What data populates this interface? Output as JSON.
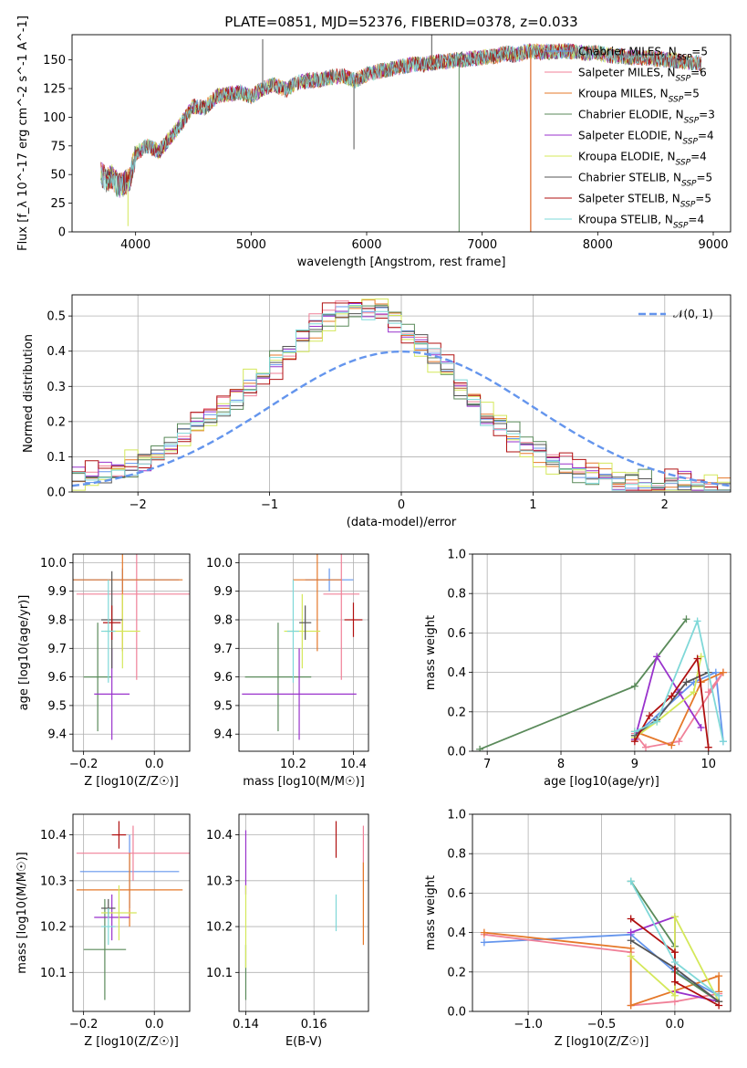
{
  "figure": {
    "title": "PLATE=0851, MJD=52376, FIBERID=0378, z=0.033"
  },
  "colors": {
    "grid": "#b0b0b0",
    "normal_curve": "#6495ed"
  },
  "legend_labels": [
    {
      "name": "Chabrier MILES",
      "n": "5",
      "color": "#6495ed"
    },
    {
      "name": "Salpeter MILES",
      "n": "6",
      "color": "#f08098"
    },
    {
      "name": "Kroupa MILES",
      "n": "5",
      "color": "#e5782a"
    },
    {
      "name": "Chabrier ELODIE",
      "n": "3",
      "color": "#5a8a5a"
    },
    {
      "name": "Salpeter ELODIE",
      "n": "4",
      "color": "#9932cc"
    },
    {
      "name": "Kroupa ELODIE",
      "n": "4",
      "color": "#d4e85a"
    },
    {
      "name": "Chabrier STELIB",
      "n": "5",
      "color": "#555555"
    },
    {
      "name": "Salpeter STELIB",
      "n": "5",
      "color": "#b01010"
    },
    {
      "name": "Kroupa STELIB",
      "n": "4",
      "color": "#7fd8d8"
    }
  ],
  "chart_data": [
    {
      "id": "spectrum",
      "type": "line",
      "xlabel": "wavelength [Angstrom, rest frame]",
      "ylabel": "Flux [f_λ 10^-17 erg cm^-2 s^-1 A^-1]",
      "xlim": [
        3450,
        9150
      ],
      "ylim": [
        0,
        172
      ],
      "xticks": [
        4000,
        5000,
        6000,
        7000,
        8000,
        9000
      ],
      "yticks": [
        0,
        25,
        50,
        75,
        100,
        125,
        150
      ],
      "grid": false,
      "legend_position": "upper-right",
      "continuum": {
        "x": [
          3700,
          3750,
          3800,
          3850,
          3900,
          3950,
          4000,
          4100,
          4200,
          4300,
          4400,
          4500,
          4600,
          4700,
          4800,
          4900,
          5000,
          5100,
          5200,
          5300,
          5400,
          5500,
          5600,
          5700,
          5800,
          5900,
          6000,
          6100,
          6200,
          6300,
          6400,
          6500,
          6600,
          6700,
          6800,
          6900,
          7000,
          7100,
          7200,
          7300,
          7400,
          7500,
          7600,
          7700,
          7800,
          7900,
          8000,
          8100,
          8200,
          8300,
          8400,
          8500,
          8600,
          8700,
          8800,
          8900
        ],
        "y": [
          50,
          45,
          48,
          40,
          42,
          45,
          68,
          75,
          70,
          82,
          95,
          110,
          108,
          118,
          120,
          122,
          118,
          125,
          128,
          124,
          130,
          132,
          133,
          135,
          136,
          132,
          137,
          140,
          142,
          144,
          146,
          146,
          148,
          149,
          150,
          151,
          152,
          153,
          156,
          154,
          158,
          157,
          157,
          158,
          157,
          156,
          156,
          154,
          153,
          152,
          152,
          151,
          150,
          149,
          148,
          147
        ]
      },
      "noise_amplitude": 7,
      "features": [
        {
          "x": 3934,
          "y": 5,
          "color": "#d4e85a"
        },
        {
          "x": 5890,
          "y": 72,
          "color": "#555555"
        },
        {
          "x": 5100,
          "y": 168,
          "color": "#555555"
        },
        {
          "x": 6563,
          "y": 172,
          "color": "#555555"
        },
        {
          "x": 6800,
          "y": 0,
          "color": "#5a8a5a"
        },
        {
          "x": 7420,
          "y": 0,
          "color": "#b01010"
        },
        {
          "x": 7420,
          "y": 0,
          "color": "#e5782a"
        }
      ]
    },
    {
      "id": "residuals",
      "type": "line",
      "xlabel": "(data-model)/error",
      "ylabel": "Normed distribution",
      "xlim": [
        -2.5,
        2.5
      ],
      "ylim": [
        0,
        0.56
      ],
      "xticks": [
        -2,
        -1,
        0,
        1,
        2
      ],
      "yticks": [
        0.0,
        0.1,
        0.2,
        0.3,
        0.4,
        0.5
      ],
      "grid": true,
      "legend_position": "upper-right",
      "legend_label": "𝒩(0, 1)",
      "bin_width": 0.1,
      "bin_start": -2.5,
      "base_histogram": [
        0.04,
        0.04,
        0.05,
        0.06,
        0.07,
        0.09,
        0.11,
        0.13,
        0.16,
        0.19,
        0.21,
        0.24,
        0.27,
        0.3,
        0.33,
        0.37,
        0.4,
        0.44,
        0.47,
        0.49,
        0.51,
        0.52,
        0.52,
        0.51,
        0.49,
        0.46,
        0.42,
        0.38,
        0.34,
        0.3,
        0.26,
        0.22,
        0.19,
        0.16,
        0.13,
        0.11,
        0.09,
        0.07,
        0.06,
        0.05,
        0.04,
        0.03,
        0.03,
        0.02,
        0.02,
        0.02,
        0.02,
        0.01,
        0.01,
        0.01
      ],
      "series_offsets": [
        0.0,
        0.02,
        -0.015,
        0.025,
        -0.02,
        0.03,
        -0.01,
        0.035,
        0.015
      ],
      "normal": {
        "mean": 0,
        "sigma": 1
      }
    },
    {
      "id": "age-vs-Z",
      "type": "scatter",
      "xlabel": "Z [log10(Z/Z☉)]",
      "ylabel": "age [log10(age/yr)]",
      "xlim": [
        -0.23,
        0.1
      ],
      "ylim": [
        9.34,
        10.03
      ],
      "xticks": [
        -0.2,
        0.0
      ],
      "yticks": [
        9.4,
        9.5,
        9.6,
        9.7,
        9.8,
        9.9,
        10.0
      ],
      "grid": true,
      "points": [
        {
          "series": 0,
          "x": -0.09,
          "y": 9.94,
          "xerr": 0.16,
          "yerr": 0.04
        },
        {
          "series": 1,
          "x": -0.05,
          "y": 9.89,
          "xerr": 0.17,
          "yerr": 0.3
        },
        {
          "series": 2,
          "x": -0.09,
          "y": 9.94,
          "xerr": 0.17,
          "yerr": 0.25
        },
        {
          "series": 3,
          "x": -0.16,
          "y": 9.6,
          "xerr": 0.04,
          "yerr": 0.19
        },
        {
          "series": 4,
          "x": -0.12,
          "y": 9.54,
          "xerr": 0.05,
          "yerr": 0.16
        },
        {
          "series": 5,
          "x": -0.09,
          "y": 9.76,
          "xerr": 0.05,
          "yerr": 0.13
        },
        {
          "series": 6,
          "x": -0.12,
          "y": 9.8,
          "xerr": 0.03,
          "yerr": 0.17
        },
        {
          "series": 7,
          "x": -0.12,
          "y": 9.79,
          "xerr": 0.025,
          "yerr": 0.06
        },
        {
          "series": 8,
          "x": -0.13,
          "y": 9.76,
          "xerr": 0.02,
          "yerr": 0.18
        }
      ]
    },
    {
      "id": "age-vs-mass",
      "type": "scatter",
      "xlabel": "mass [log10(M/M☉)]",
      "ylabel": "",
      "xlim": [
        10.02,
        10.45
      ],
      "ylim": [
        9.34,
        10.03
      ],
      "xticks": [
        10.2,
        10.4
      ],
      "yticks": [
        9.4,
        9.5,
        9.6,
        9.7,
        9.8,
        9.9,
        10.0
      ],
      "grid": true,
      "points": [
        {
          "series": 0,
          "x": 10.32,
          "y": 9.94,
          "xerr": 0.08,
          "yerr": 0.04
        },
        {
          "series": 1,
          "x": 10.36,
          "y": 9.89,
          "xerr": 0.06,
          "yerr": 0.3
        },
        {
          "series": 2,
          "x": 10.28,
          "y": 9.94,
          "xerr": 0.08,
          "yerr": 0.25
        },
        {
          "series": 3,
          "x": 10.15,
          "y": 9.6,
          "xerr": 0.11,
          "yerr": 0.19
        },
        {
          "series": 4,
          "x": 10.22,
          "y": 9.54,
          "xerr": 0.19,
          "yerr": 0.16
        },
        {
          "series": 5,
          "x": 10.23,
          "y": 9.76,
          "xerr": 0.06,
          "yerr": 0.13
        },
        {
          "series": 6,
          "x": 10.24,
          "y": 9.79,
          "xerr": 0.02,
          "yerr": 0.06
        },
        {
          "series": 7,
          "x": 10.4,
          "y": 9.8,
          "xerr": 0.03,
          "yerr": 0.06
        },
        {
          "series": 8,
          "x": 10.2,
          "y": 9.76,
          "xerr": 0.02,
          "yerr": 0.18
        }
      ]
    },
    {
      "id": "weight-vs-age",
      "type": "line",
      "xlabel": "age [log10(age/yr)]",
      "ylabel": "mass weight",
      "xlim": [
        6.8,
        10.3
      ],
      "ylim": [
        0,
        1
      ],
      "xticks": [
        7,
        8,
        9,
        10
      ],
      "yticks": [
        0.0,
        0.2,
        0.4,
        0.6,
        0.8,
        1.0
      ],
      "grid": true,
      "series": [
        {
          "series": 0,
          "x": [
            9.0,
            9.8,
            10.1,
            10.2
          ],
          "y": [
            0.08,
            0.35,
            0.4,
            0.05
          ]
        },
        {
          "series": 1,
          "x": [
            9.0,
            9.15,
            9.6,
            10.2,
            10.0
          ],
          "y": [
            0.09,
            0.02,
            0.05,
            0.4,
            0.3
          ]
        },
        {
          "series": 2,
          "x": [
            9.0,
            9.5,
            9.9,
            10.2
          ],
          "y": [
            0.1,
            0.03,
            0.35,
            0.4
          ]
        },
        {
          "series": 3,
          "x": [
            6.9,
            9.0,
            9.7
          ],
          "y": [
            0.01,
            0.33,
            0.67
          ]
        },
        {
          "series": 4,
          "x": [
            9.0,
            9.3,
            9.6,
            9.9
          ],
          "y": [
            0.06,
            0.48,
            0.3,
            0.12
          ]
        },
        {
          "series": 5,
          "x": [
            9.0,
            9.3,
            9.8,
            9.9
          ],
          "y": [
            0.07,
            0.15,
            0.3,
            0.48
          ]
        },
        {
          "series": 6,
          "x": [
            9.0,
            9.3,
            9.7,
            10.0
          ],
          "y": [
            0.08,
            0.16,
            0.35,
            0.4
          ]
        },
        {
          "series": 7,
          "x": [
            9.0,
            9.2,
            9.5,
            9.85,
            10.0
          ],
          "y": [
            0.05,
            0.18,
            0.28,
            0.47,
            0.02
          ]
        },
        {
          "series": 8,
          "x": [
            9.0,
            9.3,
            9.85,
            10.2
          ],
          "y": [
            0.1,
            0.15,
            0.66,
            0.05
          ]
        }
      ]
    },
    {
      "id": "mass-vs-Z",
      "type": "scatter",
      "xlabel": "Z [log10(Z/Z☉)]",
      "ylabel": "mass [log10(M/M☉)]",
      "xlim": [
        -0.23,
        0.1
      ],
      "ylim": [
        10.015,
        10.445
      ],
      "xticks": [
        -0.2,
        0.0
      ],
      "yticks": [
        10.1,
        10.2,
        10.3,
        10.4
      ],
      "grid": true,
      "points": [
        {
          "series": 0,
          "x": -0.07,
          "y": 10.32,
          "xerr": 0.14,
          "yerr": 0.08
        },
        {
          "series": 1,
          "x": -0.06,
          "y": 10.36,
          "xerr": 0.16,
          "yerr": 0.06
        },
        {
          "series": 2,
          "x": -0.07,
          "y": 10.28,
          "xerr": 0.15,
          "yerr": 0.08
        },
        {
          "series": 3,
          "x": -0.14,
          "y": 10.15,
          "xerr": 0.06,
          "yerr": 0.11
        },
        {
          "series": 4,
          "x": -0.12,
          "y": 10.22,
          "xerr": 0.05,
          "yerr": 0.05
        },
        {
          "series": 5,
          "x": -0.1,
          "y": 10.23,
          "xerr": 0.05,
          "yerr": 0.06
        },
        {
          "series": 6,
          "x": -0.13,
          "y": 10.24,
          "xerr": 0.02,
          "yerr": 0.02
        },
        {
          "series": 7,
          "x": -0.1,
          "y": 10.4,
          "xerr": 0.02,
          "yerr": 0.03
        },
        {
          "series": 8,
          "x": -0.13,
          "y": 10.2,
          "xerr": 0.02,
          "yerr": 0.04
        }
      ]
    },
    {
      "id": "mass-vs-EBV",
      "type": "scatter",
      "xlabel": "E(B-V)",
      "ylabel": "",
      "xlim": [
        0.138,
        0.176
      ],
      "ylim": [
        10.015,
        10.445
      ],
      "xticks": [
        0.14,
        0.16
      ],
      "yticks": [
        10.1,
        10.2,
        10.3,
        10.4
      ],
      "grid": true,
      "points": [
        {
          "series": 1,
          "x": 0.1745,
          "y": 10.36,
          "xerr": 0,
          "yerr": 0.06
        },
        {
          "series": 2,
          "x": 0.1745,
          "y": 10.25,
          "xerr": 0,
          "yerr": 0.09
        },
        {
          "series": 3,
          "x": 0.14,
          "y": 10.1,
          "xerr": 0,
          "yerr": 0.06
        },
        {
          "series": 4,
          "x": 0.14,
          "y": 10.34,
          "xerr": 0,
          "yerr": 0.07
        },
        {
          "series": 5,
          "x": 0.14,
          "y": 10.2,
          "xerr": 0,
          "yerr": 0.09
        },
        {
          "series": 7,
          "x": 0.1665,
          "y": 10.39,
          "xerr": 0,
          "yerr": 0.04
        },
        {
          "series": 8,
          "x": 0.1665,
          "y": 10.23,
          "xerr": 0,
          "yerr": 0.04
        }
      ]
    },
    {
      "id": "weight-vs-Z",
      "type": "line",
      "xlabel": "Z [log10(Z/Z☉)]",
      "ylabel": "mass weight",
      "xlim": [
        -1.38,
        0.38
      ],
      "ylim": [
        0,
        1
      ],
      "xticks": [
        -1.0,
        -0.5,
        0.0
      ],
      "yticks": [
        0.0,
        0.2,
        0.4,
        0.6,
        0.8,
        1.0
      ],
      "grid": true,
      "series": [
        {
          "series": 0,
          "x": [
            -1.3,
            -0.3,
            0.0,
            0.3
          ],
          "y": [
            0.35,
            0.39,
            0.2,
            0.08
          ]
        },
        {
          "series": 1,
          "x": [
            -1.3,
            -0.3,
            -0.3,
            0.0,
            0.3
          ],
          "y": [
            0.39,
            0.3,
            0.03,
            0.05,
            0.09
          ]
        },
        {
          "series": 2,
          "x": [
            -1.3,
            -0.3,
            -0.3,
            0.3,
            0.3
          ],
          "y": [
            0.4,
            0.32,
            0.03,
            0.18,
            0.1
          ]
        },
        {
          "series": 3,
          "x": [
            -0.3,
            0.0,
            0.0,
            0.3
          ],
          "y": [
            0.66,
            0.33,
            0.2,
            0.05
          ]
        },
        {
          "series": 4,
          "x": [
            -0.3,
            0.0,
            0.0,
            0.3
          ],
          "y": [
            0.4,
            0.48,
            0.1,
            0.05
          ]
        },
        {
          "series": 5,
          "x": [
            -0.3,
            0.0,
            0.0,
            0.3
          ],
          "y": [
            0.28,
            0.08,
            0.48,
            0.05
          ]
        },
        {
          "series": 6,
          "x": [
            -0.3,
            0.0,
            0.3
          ],
          "y": [
            0.36,
            0.22,
            0.05
          ]
        },
        {
          "series": 7,
          "x": [
            -0.3,
            0.0,
            0.0,
            0.3
          ],
          "y": [
            0.47,
            0.3,
            0.15,
            0.03
          ]
        },
        {
          "series": 8,
          "x": [
            -0.3,
            0.0,
            0.3
          ],
          "y": [
            0.66,
            0.25,
            0.08
          ]
        }
      ]
    }
  ]
}
